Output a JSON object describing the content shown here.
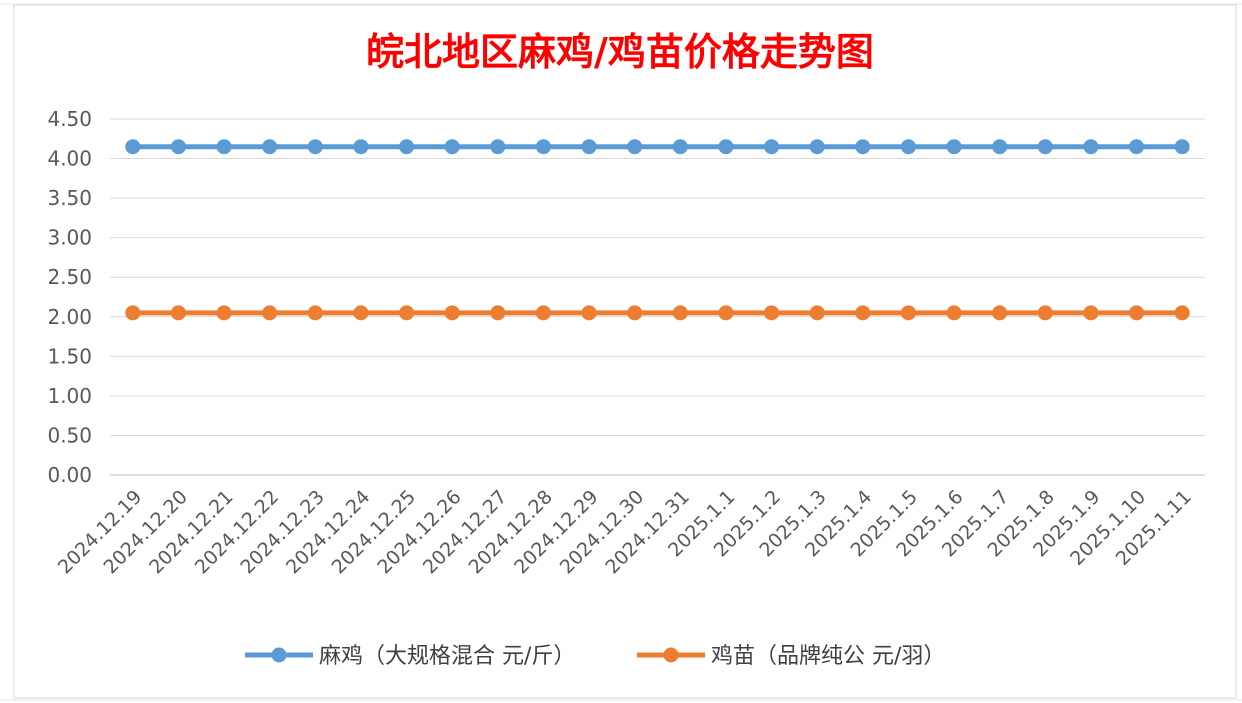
{
  "chart_data": {
    "type": "line",
    "title": "皖北地区麻鸡/鸡苗价格走势图",
    "xlabel": "",
    "ylabel": "",
    "ylim": [
      0,
      4.5
    ],
    "yticks": [
      "0.00",
      "0.50",
      "1.00",
      "1.50",
      "2.00",
      "2.50",
      "3.00",
      "3.50",
      "4.00",
      "4.50"
    ],
    "categories": [
      "2024.12.19",
      "2024.12.20",
      "2024.12.21",
      "2024.12.22",
      "2024.12.23",
      "2024.12.24",
      "2024.12.25",
      "2024.12.26",
      "2024.12.27",
      "2024.12.28",
      "2024.12.29",
      "2024.12.30",
      "2024.12.31",
      "2025.1.1",
      "2025.1.2",
      "2025.1.3",
      "2025.1.4",
      "2025.1.5",
      "2025.1.6",
      "2025.1.7",
      "2025.1.8",
      "2025.1.9",
      "2025.1.10",
      "2025.1.11"
    ],
    "series": [
      {
        "name": "麻鸡（大规格混合 元/斤）",
        "color": "#5b9bd5",
        "values": [
          4.15,
          4.15,
          4.15,
          4.15,
          4.15,
          4.15,
          4.15,
          4.15,
          4.15,
          4.15,
          4.15,
          4.15,
          4.15,
          4.15,
          4.15,
          4.15,
          4.15,
          4.15,
          4.15,
          4.15,
          4.15,
          4.15,
          4.15,
          4.15
        ]
      },
      {
        "name": "鸡苗（品牌纯公 元/羽）",
        "color": "#ed7d31",
        "values": [
          2.05,
          2.05,
          2.05,
          2.05,
          2.05,
          2.05,
          2.05,
          2.05,
          2.05,
          2.05,
          2.05,
          2.05,
          2.05,
          2.05,
          2.05,
          2.05,
          2.05,
          2.05,
          2.05,
          2.05,
          2.05,
          2.05,
          2.05,
          2.05
        ]
      }
    ],
    "grid": true,
    "legend": "bottom",
    "title_color": "#ff0000"
  }
}
